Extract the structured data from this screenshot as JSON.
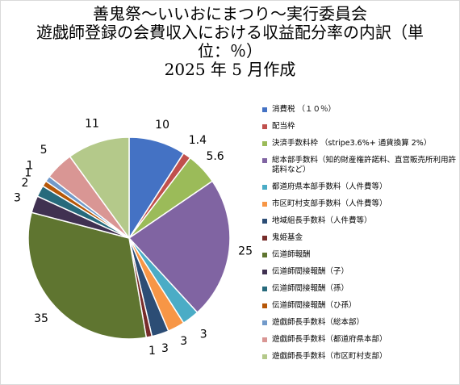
{
  "chart_data": {
    "type": "pie",
    "title_lines": [
      "善鬼祭～いいおにまつり～実行委員会",
      "遊戯師登録の会費収入における収益配分率の内訳（単",
      "位：％）",
      "2025 年 5 月作成"
    ],
    "slices": [
      {
        "label": "消費税 （１０％）",
        "value": 10,
        "value_label": "10",
        "color": "#4472c4"
      },
      {
        "label": "配当枠",
        "value": 1.4,
        "value_label": "1.4",
        "color": "#c0504d"
      },
      {
        "label": "決済手数料枠 （stripe3.6%+ 通貨換算 2%）",
        "value": 5.6,
        "value_label": "5.6",
        "color": "#9bbb59"
      },
      {
        "label": "総本部手数料（知的財産権許諾料、直営販売所利用許諾料など）",
        "value": 25,
        "value_label": "25",
        "color": "#8064a2"
      },
      {
        "label": "都道府県本部手数料（人件費等）",
        "value": 3,
        "value_label": "3",
        "color": "#4bacc6"
      },
      {
        "label": "市区町村支部手数料（人件費等）",
        "value": 3,
        "value_label": "3",
        "color": "#f79646"
      },
      {
        "label": "地域組長手数料（人件費等）",
        "value": 3,
        "value_label": "3",
        "color": "#2c4d75"
      },
      {
        "label": "鬼姫基金",
        "value": 1,
        "value_label": "1",
        "color": "#772c2a"
      },
      {
        "label": "伝道師報酬",
        "value": 35,
        "value_label": "35",
        "color": "#5f7530"
      },
      {
        "label": "伝道師間接報酬（子）",
        "value": 3,
        "value_label": "3",
        "color": "#403151"
      },
      {
        "label": "伝道師間接報酬（孫）",
        "value": 2,
        "value_label": "2",
        "color": "#276a7c"
      },
      {
        "label": "伝道師間接報酬（ひ孫）",
        "value": 1,
        "value_label": "1",
        "color": "#b65708"
      },
      {
        "label": "遊戯師長手数料（総本部）",
        "value": 1,
        "value_label": "1",
        "color": "#729aca"
      },
      {
        "label": "遊戯師長手数料（都道府県本部）",
        "value": 5,
        "value_label": "5",
        "color": "#d99694"
      },
      {
        "label": "遊戯師長手数料（市区町村支部）",
        "value": 11,
        "value_label": "11",
        "color": "#b4c98a"
      }
    ],
    "legend_position": "right"
  }
}
